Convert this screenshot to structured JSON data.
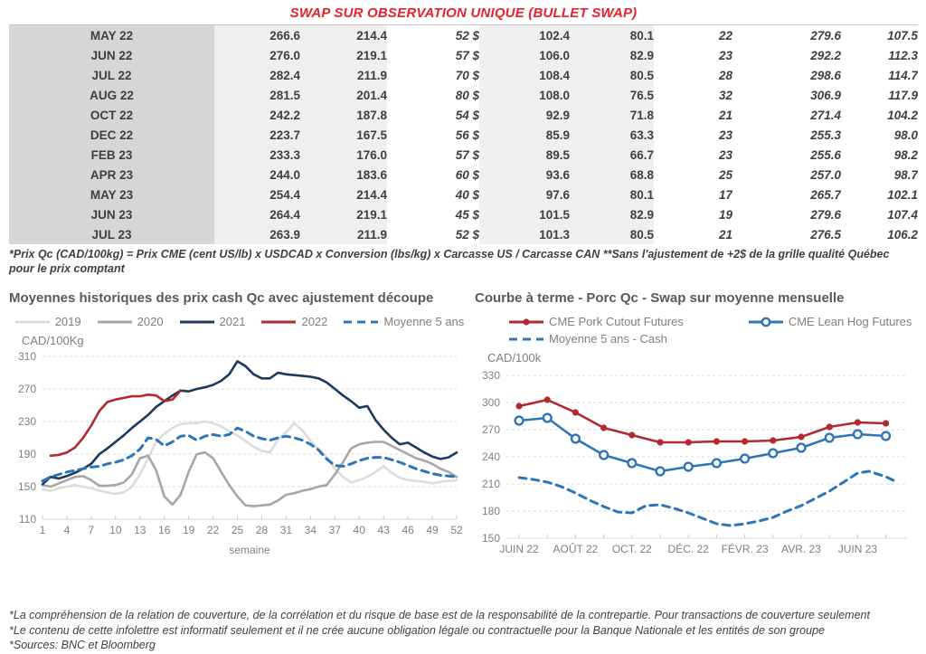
{
  "page_title": "SWAP SUR OBSERVATION UNIQUE (BULLET SWAP)",
  "colors": {
    "title_red": "#e8212b",
    "table_green": "#00a64f",
    "table_blue": "#3f6bc5",
    "navy_2021": "#1b3a5e",
    "red_2022": "#b02a30",
    "gray_2020": "#a6a6a6",
    "lightgray_2019": "#dcdcdc",
    "blue_line": "#2e75b6"
  },
  "table": {
    "rows": [
      [
        "MAY 22",
        "266.6",
        "214.4",
        "52 $",
        "102.4",
        "80.1",
        "22",
        "279.6",
        "107.5"
      ],
      [
        "JUN 22",
        "276.0",
        "219.1",
        "57 $",
        "106.0",
        "82.9",
        "23",
        "292.2",
        "112.3"
      ],
      [
        "JUL 22",
        "282.4",
        "211.9",
        "70 $",
        "108.4",
        "80.5",
        "28",
        "298.6",
        "114.7"
      ],
      [
        "AUG 22",
        "281.5",
        "201.4",
        "80 $",
        "108.0",
        "76.5",
        "32",
        "306.9",
        "117.9"
      ],
      [
        "OCT 22",
        "242.2",
        "187.8",
        "54 $",
        "92.9",
        "71.8",
        "21",
        "271.4",
        "104.2"
      ],
      [
        "DEC 22",
        "223.7",
        "167.5",
        "56 $",
        "85.9",
        "63.3",
        "23",
        "255.3",
        "98.0"
      ],
      [
        "FEB 23",
        "233.3",
        "176.0",
        "57 $",
        "89.5",
        "66.7",
        "23",
        "255.6",
        "98.2"
      ],
      [
        "APR 23",
        "244.0",
        "183.6",
        "60 $",
        "93.6",
        "68.8",
        "25",
        "257.0",
        "98.7"
      ],
      [
        "MAY 23",
        "254.4",
        "214.4",
        "40 $",
        "97.6",
        "80.1",
        "17",
        "265.7",
        "102.1"
      ],
      [
        "JUN 23",
        "264.4",
        "219.1",
        "45 $",
        "101.5",
        "82.9",
        "19",
        "279.6",
        "107.4"
      ],
      [
        "JUL 23",
        "263.9",
        "211.9",
        "52 $",
        "101.3",
        "80.5",
        "21",
        "276.5",
        "106.2"
      ]
    ],
    "footnote": "*Prix Qc (CAD/100kg) = Prix CME (cent US/lb) x USDCAD x Conversion (lbs/kg) x Carcasse US / Carcasse CAN **Sans l'ajustement de +2$ de la grille qualité Québec pour le prix comptant"
  },
  "chart_data": [
    {
      "type": "line",
      "title": "Moyennes historiques des prix cash Qc avec ajustement découpe",
      "ylabel": "CAD/100Kg",
      "xlabel": "semaine",
      "ylim": [
        110,
        310
      ],
      "yticks": [
        110,
        150,
        190,
        230,
        270,
        310
      ],
      "xlim": [
        1,
        52
      ],
      "xticks": [
        1,
        4,
        7,
        10,
        13,
        16,
        19,
        22,
        25,
        28,
        31,
        34,
        37,
        40,
        43,
        46,
        49,
        52
      ],
      "grid": "dashed-horizontal",
      "legend_position": "top",
      "x": [
        1,
        2,
        3,
        4,
        5,
        6,
        7,
        8,
        9,
        10,
        11,
        12,
        13,
        14,
        15,
        16,
        17,
        18,
        19,
        20,
        21,
        22,
        23,
        24,
        25,
        26,
        27,
        28,
        29,
        30,
        31,
        32,
        33,
        34,
        35,
        36,
        37,
        38,
        39,
        40,
        41,
        42,
        43,
        44,
        45,
        46,
        47,
        48,
        49,
        50,
        51,
        52
      ],
      "series": [
        {
          "name": "2019",
          "color": "#dcdcdc",
          "style": "solid",
          "y": [
            147,
            145,
            148,
            150,
            152,
            150,
            148,
            145,
            143,
            141,
            143,
            150,
            165,
            185,
            205,
            215,
            222,
            227,
            228,
            228,
            230,
            228,
            224,
            218,
            213,
            206,
            199,
            194,
            192,
            208,
            217,
            228,
            219,
            206,
            196,
            186,
            172,
            162,
            155,
            158,
            162,
            168,
            175,
            167,
            161,
            158,
            157,
            156,
            154,
            156,
            157,
            158
          ]
        },
        {
          "name": "2020",
          "color": "#a6a6a6",
          "style": "solid",
          "y": [
            152,
            150,
            154,
            158,
            162,
            163,
            158,
            151,
            151,
            152,
            155,
            165,
            185,
            188,
            170,
            138,
            128,
            140,
            168,
            190,
            192,
            185,
            168,
            152,
            138,
            127,
            126,
            127,
            128,
            133,
            140,
            142,
            145,
            147,
            150,
            152,
            165,
            180,
            197,
            202,
            204,
            205,
            205,
            200,
            195,
            190,
            185,
            182,
            178,
            172,
            168,
            162
          ]
        },
        {
          "name": "2021",
          "color": "#1b3a5e",
          "style": "solid",
          "y": [
            153,
            162,
            160,
            163,
            167,
            172,
            178,
            190,
            197,
            205,
            213,
            222,
            230,
            238,
            248,
            255,
            262,
            268,
            267,
            270,
            272,
            275,
            280,
            288,
            304,
            298,
            288,
            283,
            283,
            290,
            288,
            287,
            286,
            285,
            283,
            278,
            270,
            262,
            255,
            247,
            249,
            232,
            220,
            210,
            202,
            204,
            198,
            192,
            187,
            184,
            186,
            192
          ]
        },
        {
          "name": "2022",
          "color": "#b02a30",
          "style": "solid",
          "x": [
            2,
            3,
            4,
            5,
            6,
            7,
            8,
            9,
            10,
            11,
            12,
            13,
            14,
            15,
            16,
            17,
            18
          ],
          "y": [
            188,
            189,
            192,
            198,
            210,
            225,
            243,
            254,
            257,
            259,
            261,
            261,
            263,
            262,
            255,
            257,
            268
          ]
        },
        {
          "name": "Moyenne 5 ans",
          "color": "#2e75b6",
          "style": "dashed",
          "y": [
            157,
            162,
            165,
            168,
            170,
            172,
            174,
            175,
            178,
            180,
            183,
            188,
            196,
            210,
            208,
            200,
            205,
            212,
            213,
            207,
            212,
            214,
            212,
            214,
            222,
            218,
            212,
            209,
            207,
            210,
            212,
            210,
            207,
            202,
            195,
            184,
            176,
            175,
            178,
            182,
            185,
            186,
            186,
            183,
            180,
            176,
            172,
            169,
            166,
            164,
            163,
            162
          ]
        }
      ]
    },
    {
      "type": "line",
      "title": "Courbe à terme - Porc Qc - Swap sur moyenne mensuelle",
      "ylabel": "CAD/100k",
      "xlabel": "",
      "ylim": [
        150,
        330
      ],
      "yticks": [
        150,
        180,
        210,
        240,
        270,
        300,
        330
      ],
      "xlim": [
        -0.45,
        13.75
      ],
      "xticks": [
        0,
        1,
        2,
        3,
        4,
        5,
        6,
        7,
        8,
        9,
        10,
        11,
        12,
        13
      ],
      "xtick_labels": [
        "JUIN 22",
        "",
        "AOÛT 22",
        "",
        "OCT. 22",
        "",
        "DÉC. 22",
        "",
        "FÉVR. 23",
        "",
        "AVR. 23",
        "",
        "JUIN 23",
        ""
      ],
      "grid": "dashed-horizontal",
      "legend_position": "top",
      "x": [
        0,
        1,
        2,
        3,
        4,
        5,
        6,
        7,
        8,
        9,
        10,
        11,
        12,
        13
      ],
      "series": [
        {
          "name": "CME Pork Cutout Futures",
          "color": "#b02a30",
          "style": "solid",
          "marker": "filled",
          "y": [
            296,
            303,
            289,
            272,
            264,
            256,
            256,
            257,
            257,
            258,
            262,
            273,
            278,
            277
          ]
        },
        {
          "name": "CME Lean Hog Futures",
          "color": "#2e75b6",
          "style": "solid",
          "marker": "open",
          "y": [
            280,
            283,
            260,
            242,
            233,
            224,
            229,
            233,
            238,
            244,
            250,
            261,
            265,
            263
          ]
        },
        {
          "name": "Moyenne 5 ans - Cash",
          "color": "#2e75b6",
          "style": "dashed",
          "x": [
            0,
            0.5,
            1,
            1.5,
            2,
            2.5,
            3,
            3.5,
            4,
            4.5,
            5,
            5.5,
            6,
            6.5,
            7,
            7.5,
            8,
            8.5,
            9,
            9.5,
            10,
            10.5,
            11,
            11.5,
            12,
            12.4,
            13,
            13.4
          ],
          "y": [
            217,
            215,
            212,
            207,
            200,
            192,
            185,
            179,
            178,
            186,
            187,
            183,
            178,
            172,
            166,
            164,
            166,
            169,
            173,
            180,
            186,
            194,
            202,
            212,
            222,
            224,
            218,
            212
          ]
        }
      ]
    }
  ],
  "footnotes": [
    "*La compréhension de la relation de couverture, de la corrélation et du risque de base est de la responsabilité de la contrepartie. Pour transactions de couverture seulement",
    "*Le contenu de cette infolettre est informatif seulement et il ne crée aucune obligation légale ou contractuelle pour la Banque Nationale et les entités de son groupe",
    "*Sources: BNC et Bloomberg"
  ]
}
